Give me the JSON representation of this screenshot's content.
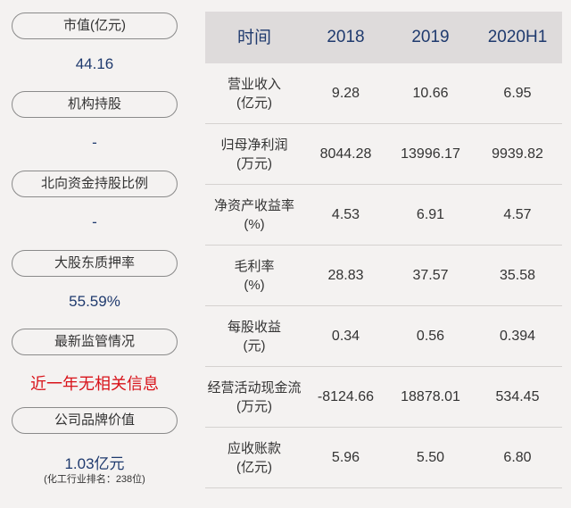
{
  "left": [
    {
      "label": "市值(亿元)",
      "value": "44.16"
    },
    {
      "label": "机构持股",
      "value": "-"
    },
    {
      "label": "北向资金持股比例",
      "value": "-"
    },
    {
      "label": "大股东质押率",
      "value": "55.59%"
    },
    {
      "label": "最新监管情况",
      "value": "近一年无相关信息"
    },
    {
      "label": "公司品牌价值",
      "value": "1.03亿元",
      "note": "(化工行业排名：238位)"
    }
  ],
  "table": {
    "headers": [
      "时间",
      "2018",
      "2019",
      "2020H1"
    ],
    "rows": [
      {
        "name": "营业收入",
        "unit": "(亿元)",
        "values": [
          "9.28",
          "10.66",
          "6.95"
        ]
      },
      {
        "name": "归母净利润",
        "unit": "(万元)",
        "values": [
          "8044.28",
          "13996.17",
          "9939.82"
        ]
      },
      {
        "name": "净资产收益率",
        "unit": "(%)",
        "values": [
          "4.53",
          "6.91",
          "4.57"
        ]
      },
      {
        "name": "毛利率",
        "unit": "(%)",
        "values": [
          "28.83",
          "37.57",
          "35.58"
        ]
      },
      {
        "name": "每股收益",
        "unit": "(元)",
        "values": [
          "0.34",
          "0.56",
          "0.394"
        ]
      },
      {
        "name": "经营活动现金流",
        "unit": "(万元)",
        "values": [
          "-8124.66",
          "18878.01",
          "534.45"
        ]
      },
      {
        "name": "应收账款",
        "unit": "(亿元)",
        "values": [
          "5.96",
          "5.50",
          "6.80"
        ]
      }
    ]
  },
  "colors": {
    "accent": "#1f3a6e",
    "alert": "#d8131a",
    "header_bg": "#dedbdb"
  }
}
